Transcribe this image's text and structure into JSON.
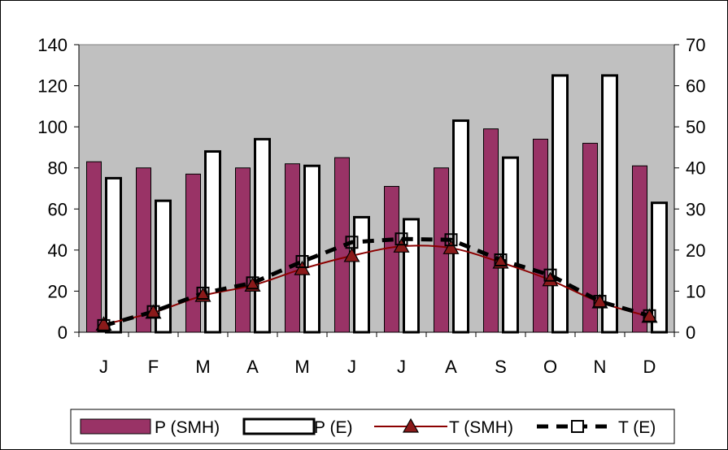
{
  "chart_data": {
    "type": "bar",
    "title": "",
    "xlabel": "",
    "ylabel": "",
    "y2label": "",
    "categories": [
      "J",
      "F",
      "M",
      "A",
      "M",
      "J",
      "J",
      "A",
      "S",
      "O",
      "N",
      "D"
    ],
    "ylim": [
      0,
      140
    ],
    "y_ticks": [
      "0",
      "20",
      "40",
      "60",
      "80",
      "100",
      "120",
      "140"
    ],
    "y2lim": [
      0,
      70
    ],
    "y2_ticks": [
      "0",
      "10",
      "20",
      "30",
      "40",
      "50",
      "60",
      "70"
    ],
    "grid": false,
    "plot_background": "#c0c0c0",
    "legend_position": "bottom",
    "series": [
      {
        "name": "P (SMH)",
        "type": "bar",
        "axis": "left",
        "color": "#993366",
        "values": [
          83,
          80,
          77,
          80,
          82,
          85,
          71,
          80,
          99,
          94,
          92,
          81
        ]
      },
      {
        "name": "P (E)",
        "type": "bar",
        "axis": "left",
        "color": "#ffffff",
        "values": [
          75,
          64,
          88,
          94,
          81,
          56,
          55,
          103,
          85,
          125,
          125,
          63
        ]
      },
      {
        "name": "T (SMH)",
        "type": "line",
        "axis": "right",
        "color": "#8b0000",
        "marker": "triangle",
        "values": [
          1.9,
          4.8,
          8.9,
          11.4,
          15.4,
          18.6,
          20.9,
          20.5,
          17.0,
          12.7,
          7.3,
          3.8
        ]
      },
      {
        "name": "T (E)",
        "type": "line",
        "axis": "right",
        "color": "#000000",
        "marker": "square",
        "dash": true,
        "values": [
          1.6,
          5.0,
          9.5,
          12.0,
          17.2,
          21.9,
          22.7,
          22.5,
          17.6,
          13.9,
          7.5,
          4.0
        ]
      }
    ]
  }
}
